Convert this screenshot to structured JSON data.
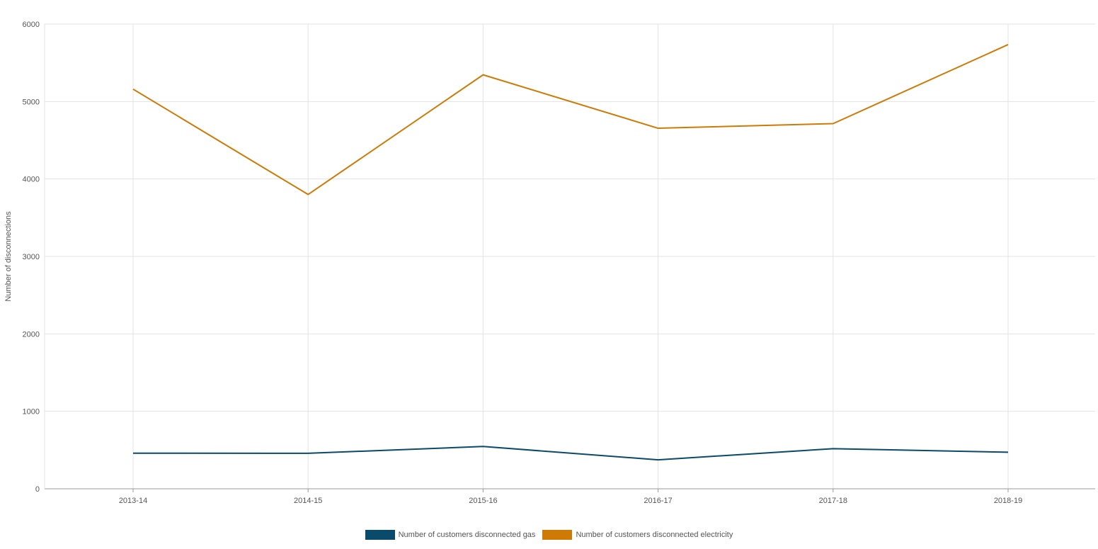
{
  "chart_data": {
    "type": "line",
    "title": "",
    "xlabel": "",
    "ylabel": "Number of disconnections",
    "categories": [
      "2013-14",
      "2014-15",
      "2015-16",
      "2016-17",
      "2017-18",
      "2018-19"
    ],
    "ylim": [
      0,
      6000
    ],
    "yticks": [
      "0",
      "1000",
      "2000",
      "3000",
      "4000",
      "5000",
      "6000"
    ],
    "grid": true,
    "legend_position": "bottom",
    "series": [
      {
        "name": "Number of customers disconnected gas",
        "color": "#0a4a6b",
        "values": [
          460,
          458,
          546,
          374,
          518,
          472
        ]
      },
      {
        "name": "Number of customers disconnected electricity",
        "color": "#d07a06",
        "values": [
          5160,
          3800,
          5345,
          4655,
          4715,
          5735
        ]
      }
    ]
  }
}
